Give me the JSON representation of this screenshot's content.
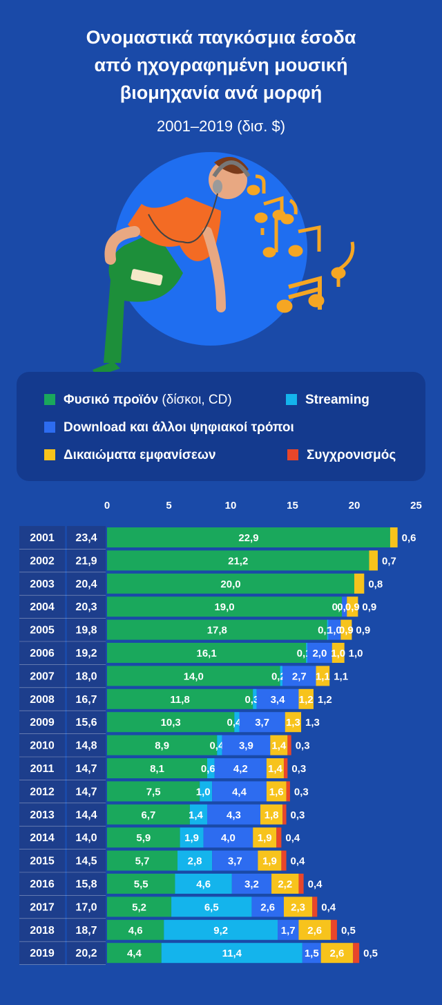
{
  "title": "Ονομαστικά παγκόσμια έσοδα\nαπό ηχογραφημένη μουσική\nβιομηχανία ανά μορφή",
  "subtitle": "2001–2019 (δισ. $)",
  "legend": {
    "physical_label": "Φυσικό προϊόν",
    "physical_note": "(δίσκοι, CD)",
    "streaming_label": "Streaming",
    "download_label": "Download και άλλοι ψηφιακοί τρόποι",
    "performance_label": "Δικαιώματα εμφανίσεων",
    "sync_label": "Συγχρονισμός"
  },
  "colors": {
    "background": "#1a4aa8",
    "panel": "#143a8e",
    "row_label_bg": "#1d3e8c",
    "physical": "#1aa85c",
    "streaming": "#14b4ec",
    "download": "#2d6cf0",
    "performance": "#f7c31c",
    "sync": "#e8462a"
  },
  "chart_data": {
    "type": "bar",
    "stacked": true,
    "orientation": "horizontal",
    "xlim": [
      0,
      25
    ],
    "x_ticks": [
      "0",
      "5",
      "10",
      "15",
      "20",
      "25"
    ],
    "categories": [
      "2001",
      "2002",
      "2003",
      "2004",
      "2005",
      "2006",
      "2007",
      "2008",
      "2009",
      "2010",
      "2011",
      "2012",
      "2013",
      "2014",
      "2015",
      "2016",
      "2017",
      "2018",
      "2019"
    ],
    "totals": [
      "23,4",
      "21,9",
      "20,4",
      "20,3",
      "19,8",
      "19,2",
      "18,0",
      "16,7",
      "15,6",
      "14,8",
      "14,7",
      "14,7",
      "14,4",
      "14,0",
      "14,5",
      "15,8",
      "17,0",
      "18,7",
      "20,2"
    ],
    "series": [
      {
        "name": "Φυσικό προϊόν (δίσκοι, CD)",
        "key": "physical",
        "values": [
          22.9,
          21.2,
          20.0,
          19.0,
          17.8,
          16.1,
          14.0,
          11.8,
          10.3,
          8.9,
          8.1,
          7.5,
          6.7,
          5.9,
          5.7,
          5.5,
          5.2,
          4.6,
          4.4
        ],
        "labels": [
          "22,9",
          "21,2",
          "20,0",
          "19,0",
          "17,8",
          "16,1",
          "14,0",
          "11,8",
          "10,3",
          "8,9",
          "8,1",
          "7,5",
          "6,7",
          "5,9",
          "5,7",
          "5,5",
          "5,2",
          "4,6",
          "4,4"
        ]
      },
      {
        "name": "Streaming",
        "key": "streaming",
        "values": [
          0,
          0,
          0,
          0,
          0.1,
          0.1,
          0.2,
          0.3,
          0.4,
          0.4,
          0.6,
          1.0,
          1.4,
          1.9,
          2.8,
          4.6,
          6.5,
          9.2,
          11.4
        ],
        "labels": [
          "",
          "",
          "",
          "0,0",
          "0,1",
          "0,1",
          "0,2",
          "0,3",
          "0,4",
          "0,4",
          "0,6",
          "1,0",
          "1,4",
          "1,9",
          "2,8",
          "4,6",
          "6,5",
          "9,2",
          "11,4"
        ]
      },
      {
        "name": "Download και άλλοι ψηφιακοί τρόποι",
        "key": "download",
        "values": [
          0,
          0,
          0,
          0.4,
          1.0,
          2.0,
          2.7,
          3.4,
          3.7,
          3.9,
          4.2,
          4.4,
          4.3,
          4.0,
          3.7,
          3.2,
          2.6,
          1.7,
          1.5
        ],
        "labels": [
          "",
          "",
          "",
          "0,4",
          "1,0",
          "2,0",
          "2,7",
          "3,4",
          "3,7",
          "3,9",
          "4,2",
          "4,4",
          "4,3",
          "4,0",
          "3,7",
          "3,2",
          "2,6",
          "1,7",
          "1,5"
        ]
      },
      {
        "name": "Δικαιώματα εμφανίσεων",
        "key": "performance",
        "values": [
          0.6,
          0.7,
          0.8,
          0.9,
          0.9,
          1.0,
          1.1,
          1.2,
          1.3,
          1.4,
          1.4,
          1.6,
          1.8,
          1.9,
          1.9,
          2.2,
          2.3,
          2.6,
          2.6
        ],
        "labels": [
          "0,6",
          "0,7",
          "0,8",
          "0,9",
          "0,9",
          "1,0",
          "1,1",
          "1,2",
          "1,3",
          "1,4",
          "1,4",
          "1,6",
          "1,8",
          "1,9",
          "1,9",
          "2,2",
          "2,3",
          "2,6",
          "2,6"
        ]
      },
      {
        "name": "Συγχρονισμός",
        "key": "sync",
        "values": [
          0,
          0,
          0,
          0,
          0,
          0,
          0,
          0,
          0,
          0.3,
          0.3,
          0.3,
          0.3,
          0.4,
          0.4,
          0.4,
          0.4,
          0.5,
          0.5
        ],
        "labels": [
          "",
          "",
          "",
          "",
          "",
          "",
          "",
          "",
          "",
          "0,3",
          "0,3",
          "0,3",
          "0,3",
          "0,4",
          "0,4",
          "0,4",
          "0,4",
          "0,5",
          "0,5"
        ]
      }
    ]
  }
}
